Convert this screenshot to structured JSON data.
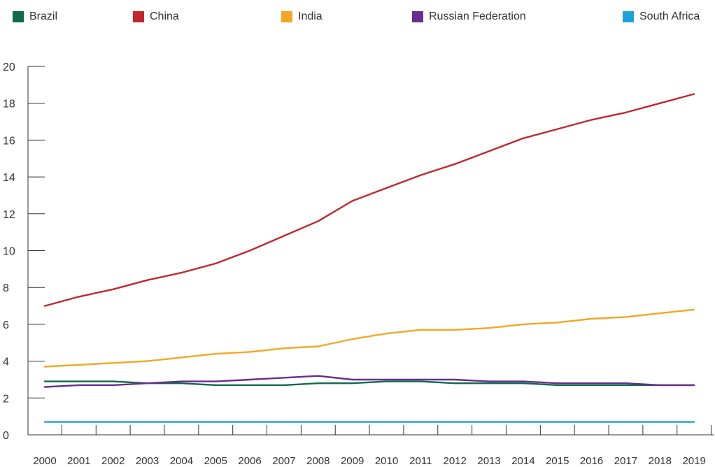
{
  "chart_data": {
    "type": "line",
    "title": "",
    "xlabel": "",
    "ylabel": "",
    "ylim": [
      0,
      20
    ],
    "yticks": [
      0,
      2,
      4,
      6,
      8,
      10,
      12,
      14,
      16,
      18,
      20
    ],
    "yticklabels": [
      "0",
      "2",
      "4",
      "6",
      "8",
      "10",
      "12",
      "14",
      "16",
      "18",
      "20"
    ],
    "x": [
      "2000",
      "2001",
      "2002",
      "2003",
      "2004",
      "2005",
      "2006",
      "2007",
      "2008",
      "2009",
      "2010",
      "2011",
      "2012",
      "2013",
      "2014",
      "2015",
      "2016",
      "2017",
      "2018",
      "2019"
    ],
    "grid": false,
    "legend_position": "top",
    "series": [
      {
        "name": "Brazil",
        "color": "#0e6b4b",
        "values": [
          2.9,
          2.9,
          2.9,
          2.8,
          2.8,
          2.7,
          2.7,
          2.7,
          2.8,
          2.8,
          2.9,
          2.9,
          2.8,
          2.8,
          2.8,
          2.7,
          2.7,
          2.7,
          2.7,
          2.7
        ]
      },
      {
        "name": "China",
        "color": "#c1272d",
        "values": [
          7.0,
          7.5,
          7.9,
          8.4,
          8.8,
          9.3,
          10.0,
          10.8,
          11.6,
          12.7,
          13.4,
          14.1,
          14.7,
          15.4,
          16.1,
          16.6,
          17.1,
          17.5,
          18.0,
          18.5
        ]
      },
      {
        "name": "India",
        "color": "#f5a623",
        "values": [
          3.7,
          3.8,
          3.9,
          4.0,
          4.2,
          4.4,
          4.5,
          4.7,
          4.8,
          5.2,
          5.5,
          5.7,
          5.7,
          5.8,
          6.0,
          6.1,
          6.3,
          6.4,
          6.6,
          6.8
        ]
      },
      {
        "name": "Russian Federation",
        "color": "#6a2c91",
        "values": [
          2.6,
          2.7,
          2.7,
          2.8,
          2.9,
          2.9,
          3.0,
          3.1,
          3.2,
          3.0,
          3.0,
          3.0,
          3.0,
          2.9,
          2.9,
          2.8,
          2.8,
          2.8,
          2.7,
          2.7
        ]
      },
      {
        "name": "South Africa",
        "color": "#1ba3dc",
        "values": [
          0.7,
          0.7,
          0.7,
          0.7,
          0.7,
          0.7,
          0.7,
          0.7,
          0.7,
          0.7,
          0.7,
          0.7,
          0.7,
          0.7,
          0.7,
          0.7,
          0.7,
          0.7,
          0.7,
          0.7
        ]
      }
    ]
  }
}
